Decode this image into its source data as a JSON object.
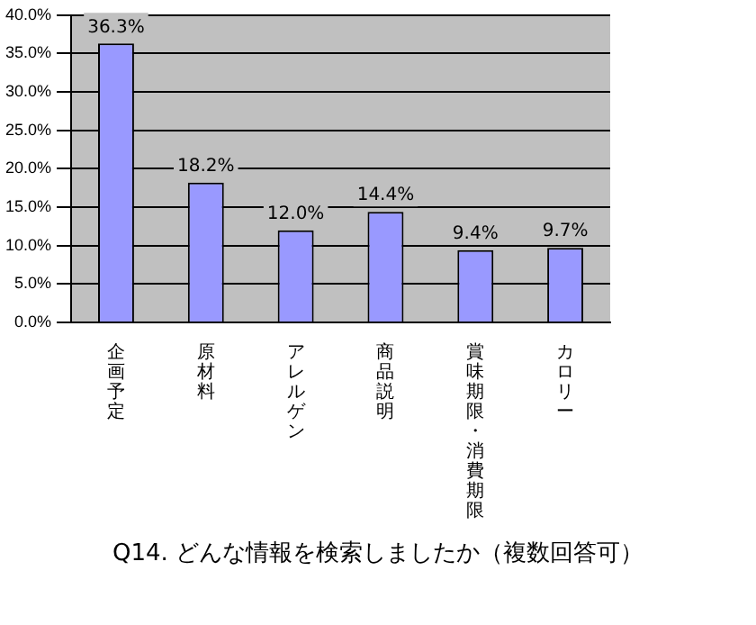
{
  "chart_data": {
    "type": "bar",
    "title": "Q14. どんな情報を検索しましたか（複数回答可）",
    "categories": [
      "企画予定",
      "原材料",
      "アレルゲン",
      "商品説明",
      "賞味期限・消費期限",
      "カロリー"
    ],
    "values": [
      36.3,
      18.2,
      12.0,
      14.4,
      9.4,
      9.7
    ],
    "value_labels": [
      "36.3%",
      "18.2%",
      "12.0%",
      "14.4%",
      "9.4%",
      "9.7%"
    ],
    "color": "#9999ff",
    "ylim": [
      0,
      40
    ],
    "yticks": [
      {
        "value": 0,
        "label": "0.0%"
      },
      {
        "value": 5,
        "label": "5.0%"
      },
      {
        "value": 10,
        "label": "10.0%"
      },
      {
        "value": 15,
        "label": "15.0%"
      },
      {
        "value": 20,
        "label": "20.0%"
      },
      {
        "value": 25,
        "label": "25.0%"
      },
      {
        "value": 30,
        "label": "30.0%"
      },
      {
        "value": 35,
        "label": "35.0%"
      },
      {
        "value": 40,
        "label": "40.0%"
      }
    ],
    "grid": "y",
    "legend": false
  }
}
